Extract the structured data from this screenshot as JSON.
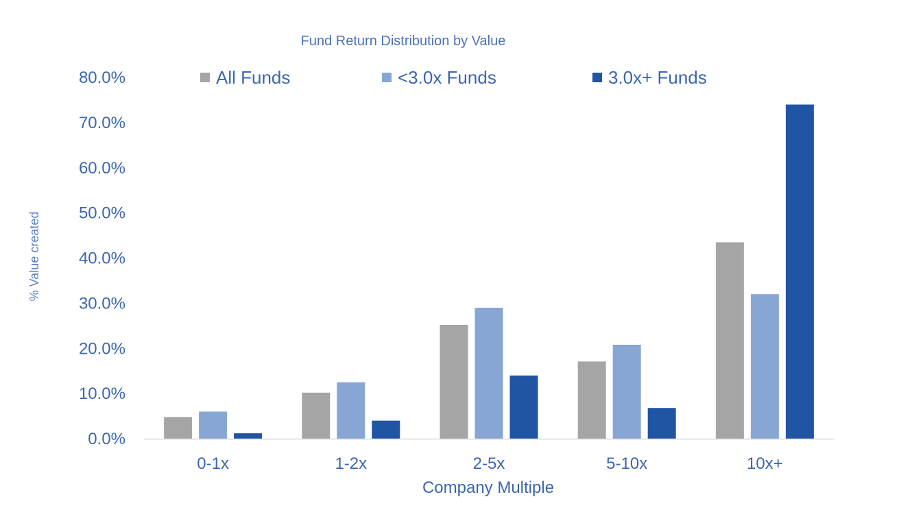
{
  "chart_data": {
    "type": "bar",
    "title": "Fund Return Distribution by Value",
    "xlabel": "Company Multiple",
    "ylabel": "% Value created",
    "categories": [
      "0-1x",
      "1-2x",
      "2-5x",
      "5-10x",
      "10x+"
    ],
    "series": [
      {
        "name": "All Funds",
        "color": "#a5a5a5",
        "values": [
          4.8,
          10.2,
          25.2,
          17.1,
          43.5
        ]
      },
      {
        "name": "<3.0x Funds",
        "color": "#87a6d3",
        "values": [
          6.0,
          12.5,
          29.0,
          20.8,
          32.0
        ]
      },
      {
        "name": "3.0x+ Funds",
        "color": "#1f55a3",
        "values": [
          1.2,
          4.0,
          14.0,
          6.8,
          74.0
        ]
      }
    ],
    "ylim": [
      0,
      80
    ],
    "yticks": [
      "0.0%",
      "10.0%",
      "20.0%",
      "30.0%",
      "40.0%",
      "50.0%",
      "60.0%",
      "70.0%",
      "80.0%"
    ],
    "grid": false,
    "legend_position": "top"
  }
}
